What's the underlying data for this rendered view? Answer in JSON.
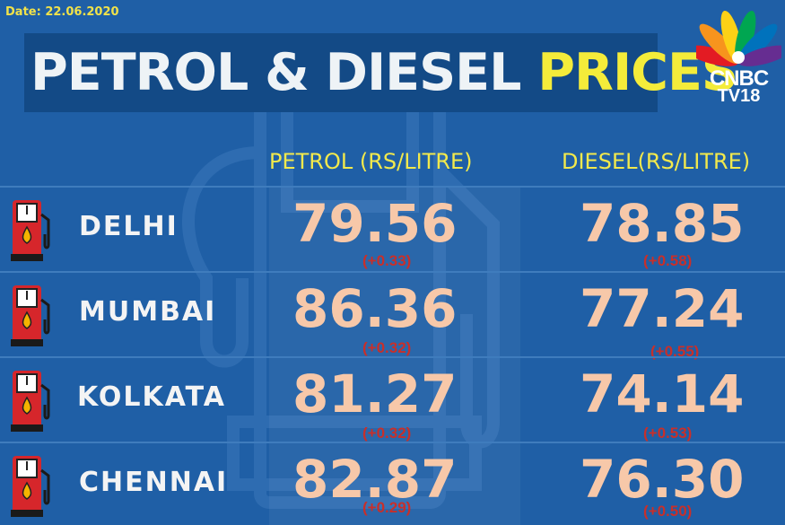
{
  "date": "Date: 22.06.2020",
  "title": {
    "part1": "PETROL & DIESEL ",
    "part2": "PRICES"
  },
  "logo": {
    "line1": "CNBC",
    "line2": "TV18"
  },
  "columns": {
    "petrol": "PETROL (RS/LITRE)",
    "diesel": "DIESEL(RS/LITRE)"
  },
  "colors": {
    "background": "#1f5fa6",
    "title_yellow": "#f4ec3a",
    "price": "#f7c8a9",
    "change": "#c82f2a",
    "pump_red": "#d6262b"
  },
  "icons": {
    "pump": "fuel-pump-icon",
    "logo": "peacock-logo-icon"
  },
  "rows": [
    {
      "city": "DELHI",
      "petrol": "79.56",
      "petrol_change": "(+0.33)",
      "diesel": "78.85",
      "diesel_change": "(+0.58)"
    },
    {
      "city": "MUMBAI",
      "petrol": "86.36",
      "petrol_change": "(+0.32)",
      "diesel": "77.24",
      "diesel_change": "(+0.55)"
    },
    {
      "city": "KOLKATA",
      "petrol": "81.27",
      "petrol_change": "(+0.32)",
      "diesel": "74.14",
      "diesel_change": "(+0.53)"
    },
    {
      "city": "CHENNAI",
      "petrol": "82.87",
      "petrol_change": "(+0.29)",
      "diesel": "76.30",
      "diesel_change": "(+0.50)"
    }
  ]
}
